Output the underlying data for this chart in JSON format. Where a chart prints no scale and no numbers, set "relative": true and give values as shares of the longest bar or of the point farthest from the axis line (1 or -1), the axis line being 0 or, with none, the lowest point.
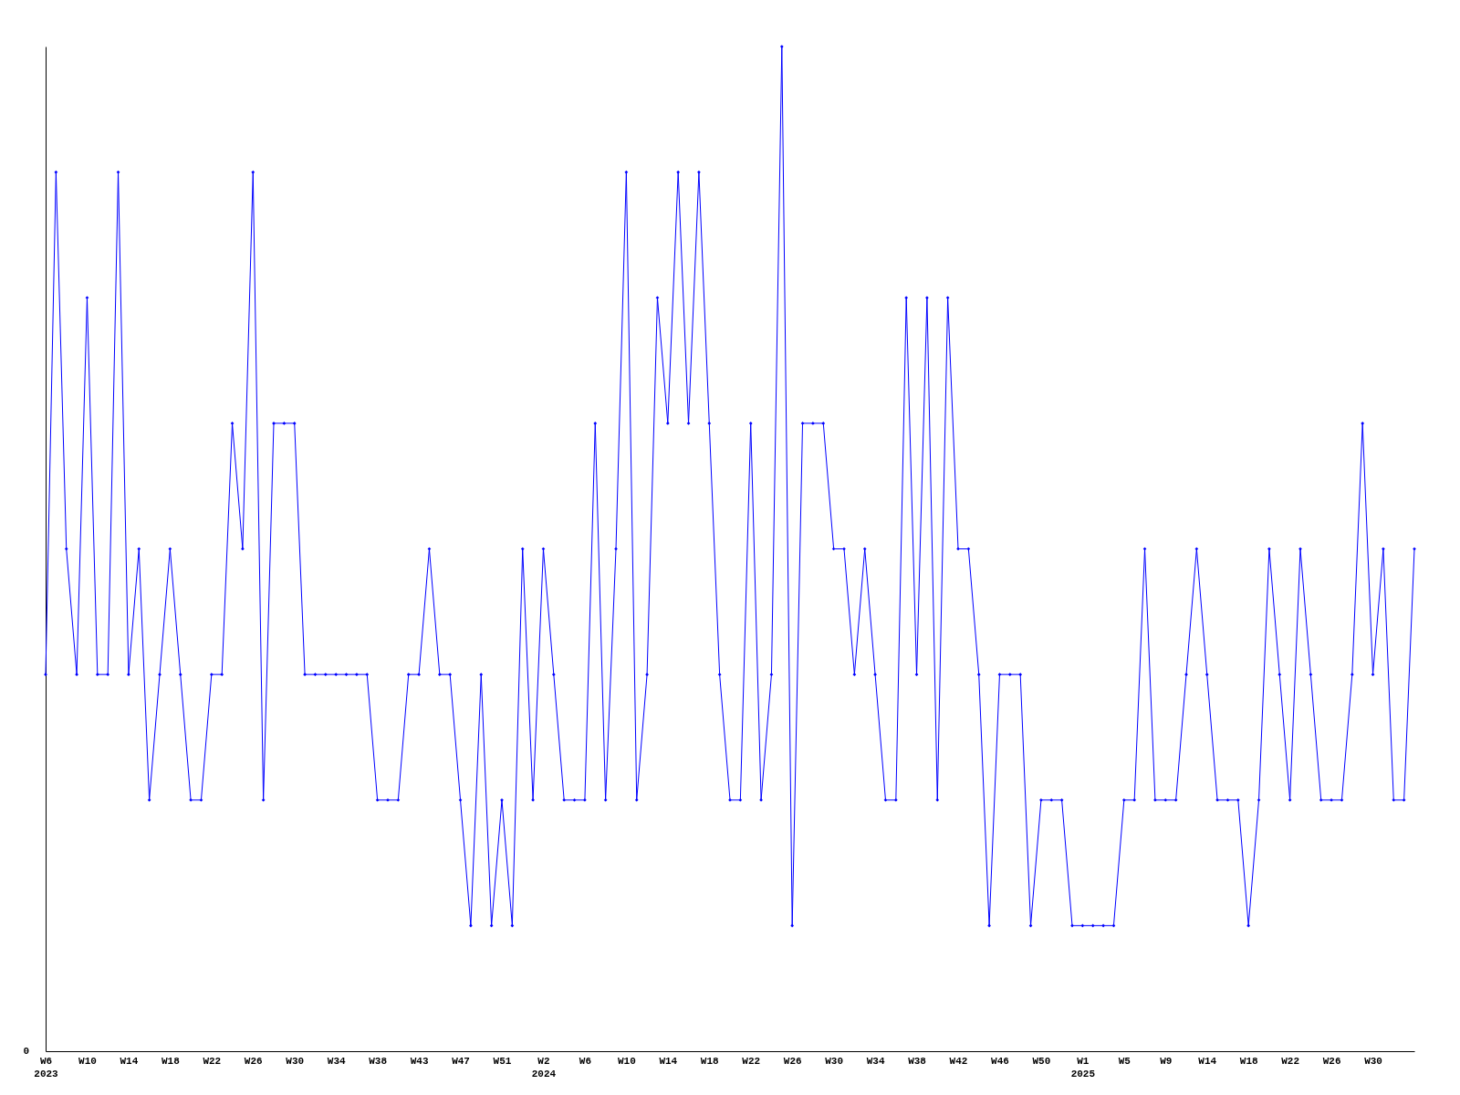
{
  "chart_data": {
    "type": "line",
    "relative": true,
    "marker": "diamond",
    "line_style": "solid",
    "grid": false,
    "annotations": [
      "0"
    ],
    "categories": [
      "W6\n2023",
      null,
      null,
      null,
      "W10",
      null,
      null,
      null,
      "W14",
      null,
      null,
      null,
      "W18",
      null,
      null,
      null,
      "W22",
      null,
      null,
      null,
      "W26",
      null,
      null,
      null,
      "W30",
      null,
      null,
      null,
      "W34",
      null,
      null,
      null,
      "W38",
      null,
      null,
      null,
      "W43",
      null,
      null,
      null,
      "W47",
      null,
      null,
      null,
      "W51",
      null,
      null,
      null,
      "W2\n2024",
      null,
      null,
      null,
      "W6",
      null,
      null,
      null,
      "W10",
      null,
      null,
      null,
      "W14",
      null,
      null,
      null,
      "W18",
      null,
      null,
      null,
      "W22",
      null,
      null,
      null,
      "W26",
      null,
      null,
      null,
      "W30",
      null,
      null,
      null,
      "W34",
      null,
      null,
      null,
      "W38",
      null,
      null,
      null,
      "W42",
      null,
      null,
      null,
      "W46",
      null,
      null,
      null,
      "W50",
      null,
      null,
      null,
      "W1\n2025",
      null,
      null,
      null,
      "W5",
      null,
      null,
      null,
      "W9",
      null,
      null,
      null,
      "W14",
      null,
      null,
      null,
      "W18",
      null,
      null,
      null,
      "W22",
      null,
      null,
      null,
      "W26",
      null,
      null,
      null,
      "W30",
      null,
      null,
      null,
      null
    ],
    "series": [
      {
        "color": "#0000ff",
        "values": [
          0.375,
          0.875,
          0.5,
          0.375,
          0.75,
          0.375,
          0.375,
          0.875,
          0.375,
          0.5,
          0.25,
          0.375,
          0.5,
          0.375,
          0.25,
          0.25,
          0.375,
          0.375,
          0.625,
          0.5,
          0.875,
          0.25,
          0.625,
          0.625,
          0.625,
          0.375,
          0.375,
          0.375,
          0.375,
          0.375,
          0.375,
          0.375,
          0.25,
          0.25,
          0.25,
          0.375,
          0.375,
          0.5,
          0.375,
          0.375,
          0.25,
          0.125,
          0.375,
          0.125,
          0.25,
          0.125,
          0.5,
          0.25,
          0.5,
          0.375,
          0.25,
          0.25,
          0.25,
          0.625,
          0.25,
          0.5,
          0.875,
          0.25,
          0.375,
          0.75,
          0.625,
          0.875,
          0.625,
          0.875,
          0.625,
          0.375,
          0.25,
          0.25,
          0.625,
          0.25,
          0.375,
          1,
          0.125,
          0.625,
          0.625,
          0.625,
          0.5,
          0.5,
          0.375,
          0.5,
          0.375,
          0.25,
          0.25,
          0.75,
          0.375,
          0.75,
          0.25,
          0.75,
          0.5,
          0.5,
          0.375,
          0.125,
          0.375,
          0.375,
          0.375,
          0.125,
          0.25,
          0.25,
          0.25,
          0.125,
          0.125,
          0.125,
          0.125,
          0.125,
          0.25,
          0.25,
          0.5,
          0.25,
          0.25,
          0.25,
          0.375,
          0.5,
          0.375,
          0.25,
          0.25,
          0.25,
          0.125,
          0.25,
          0.5,
          0.375,
          0.25,
          0.5,
          0.375,
          0.25,
          0.25,
          0.25,
          0.375,
          0.625,
          0.375,
          0.5,
          0.25,
          0.25,
          0.5
        ]
      }
    ]
  }
}
